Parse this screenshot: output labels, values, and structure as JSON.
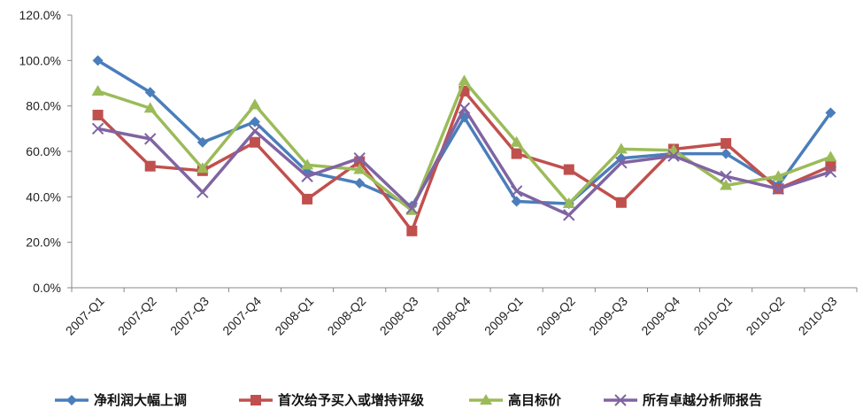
{
  "chart_data": {
    "type": "line",
    "categories": [
      "2007-Q1",
      "2007-Q2",
      "2007-Q3",
      "2007-Q4",
      "2008-Q1",
      "2008-Q2",
      "2008-Q3",
      "2008-Q4",
      "2009-Q1",
      "2009-Q2",
      "2009-Q3",
      "2009-Q4",
      "2010-Q1",
      "2010-Q2",
      "2010-Q3"
    ],
    "ylim": [
      0,
      120
    ],
    "y_ticks": [
      "0.0%",
      "20.0%",
      "40.0%",
      "60.0%",
      "80.0%",
      "100.0%",
      "120.0%"
    ],
    "y_tick_values": [
      0,
      20,
      40,
      60,
      80,
      100,
      120
    ],
    "grid": false,
    "legend_position": "bottom",
    "series": [
      {
        "name": "净利润大幅上调",
        "color": "#4a7ebb",
        "marker": "diamond",
        "values": [
          100,
          86,
          64,
          73,
          51,
          46,
          36,
          75,
          38,
          37,
          57,
          59,
          59,
          45,
          77
        ]
      },
      {
        "name": "首次给予买入或增持评级",
        "color": "#c0504d",
        "marker": "square",
        "values": [
          76,
          53.5,
          51.5,
          64,
          39,
          55.5,
          25,
          86.5,
          59,
          52,
          37.5,
          61,
          63.5,
          43.5,
          53.5
        ]
      },
      {
        "name": "高目标价",
        "color": "#9bbb59",
        "marker": "triangle",
        "values": [
          86.5,
          79,
          52.5,
          80.5,
          54,
          52,
          34,
          91,
          64,
          37,
          61,
          60.5,
          45,
          49,
          57.5
        ]
      },
      {
        "name": "所有卓越分析师报告",
        "color": "#8064a2",
        "marker": "x",
        "values": [
          70,
          65.5,
          42,
          69,
          49,
          57,
          35,
          79,
          42.5,
          32,
          55,
          58,
          49,
          43.5,
          51
        ]
      }
    ]
  }
}
